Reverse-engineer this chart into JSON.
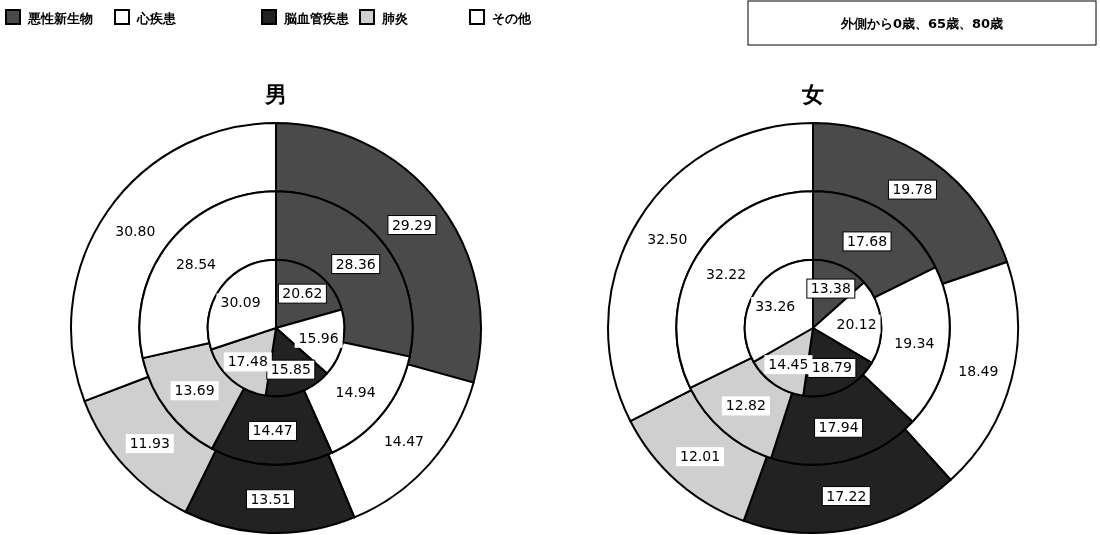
{
  "chart_data": [
    {
      "type": "pie",
      "title": "男",
      "categories": [
        "悪性新生物",
        "心疾患",
        "脳血管疾患",
        "肺炎",
        "その他"
      ],
      "colors": [
        "#4a4a4a",
        "#ffffff",
        "#222222",
        "#cfcfcf",
        "#ffffff"
      ],
      "legend": "top",
      "series": [
        {
          "values": [
            29.29,
            14.47,
            13.51,
            11.93,
            30.8
          ],
          "value_labels": [
            "29.29",
            "14.47",
            "13.51",
            "11.93",
            "30.80"
          ]
        },
        {
          "values": [
            28.36,
            14.94,
            14.47,
            13.69,
            28.54
          ],
          "value_labels": [
            "28.36",
            "14.94",
            "14.47",
            "13.69",
            "28.54"
          ]
        },
        {
          "values": [
            20.62,
            15.96,
            15.85,
            17.48,
            30.09
          ],
          "value_labels": [
            "20.62",
            "15.96",
            "15.85",
            "17.48",
            "30.09"
          ]
        }
      ]
    },
    {
      "type": "pie",
      "title": "女",
      "categories": [
        null,
        null,
        null,
        null,
        null
      ],
      "colors": [
        "#4a4a4a",
        "#ffffff",
        "#222222",
        "#cfcfcf",
        "#ffffff"
      ],
      "annotations": [
        "外側から0歳、65歳、80歳"
      ],
      "series": [
        {
          "values": [
            19.78,
            18.49,
            17.22,
            12.01,
            32.5
          ],
          "value_labels": [
            "19.78",
            "18.49",
            "17.22",
            "12.01",
            "32.50"
          ]
        },
        {
          "values": [
            17.68,
            19.34,
            17.94,
            12.82,
            32.22
          ],
          "value_labels": [
            "17.68",
            "19.34",
            "17.94",
            "12.82",
            "32.22"
          ]
        },
        {
          "values": [
            13.38,
            20.12,
            18.79,
            14.45,
            33.26
          ],
          "value_labels": [
            "13.38",
            "20.12",
            "18.79",
            "14.45",
            "33.26"
          ]
        }
      ]
    }
  ]
}
